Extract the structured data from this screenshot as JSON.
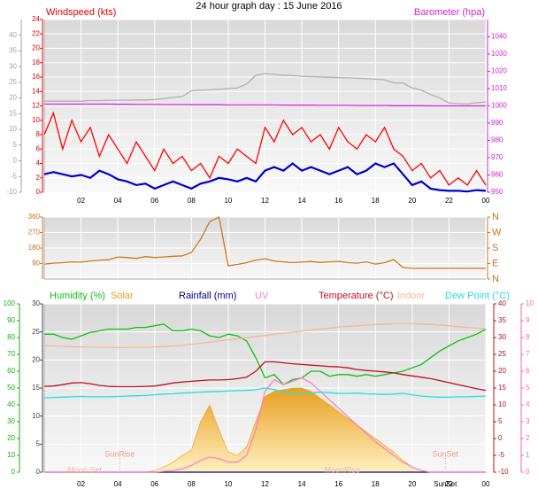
{
  "chart_data": [
    {
      "type": "line",
      "title": "24 hour graph day : 15 June 2016",
      "xlim": [
        0,
        24
      ],
      "x": [
        0,
        0.5,
        1,
        1.5,
        2,
        2.5,
        3,
        3.5,
        4,
        4.5,
        5,
        5.5,
        6,
        6.5,
        7,
        7.5,
        8,
        8.5,
        9,
        9.5,
        10,
        10.5,
        11,
        11.5,
        12,
        12.5,
        13,
        13.5,
        14,
        14.5,
        15,
        15.5,
        16,
        16.5,
        17,
        17.5,
        18,
        18.5,
        19,
        19.5,
        20,
        20.5,
        21,
        21.5,
        22,
        22.5,
        23,
        23.5,
        24
      ],
      "xticks": [
        {
          "value": 2,
          "label": "02"
        },
        {
          "value": 4,
          "label": "04"
        },
        {
          "value": 6,
          "label": "06"
        },
        {
          "value": 8,
          "label": "08"
        },
        10,
        12,
        14,
        16,
        18,
        20,
        22,
        {
          "value": 24,
          "label": "00"
        }
      ],
      "axes": [
        {
          "label": "Windspeed (kts)",
          "color": "#e00000",
          "side": "left",
          "grid": true,
          "ylim": [
            0,
            24
          ],
          "yticks": [
            0,
            2,
            4,
            6,
            8,
            10,
            12,
            14,
            16,
            18,
            20,
            22,
            24
          ]
        },
        {
          "color": "#a0a0a0",
          "side": "left",
          "ylim": [
            -10,
            45
          ],
          "yticks": [
            -10,
            -5,
            0,
            5,
            10,
            15,
            20,
            25,
            30,
            35,
            40
          ]
        },
        {
          "label": "Barometer (hpa)",
          "color": "#d020d0",
          "side": "right",
          "ylim": [
            950,
            1050
          ],
          "yticks": [
            950,
            960,
            970,
            980,
            990,
            1000,
            1010,
            1020,
            1030,
            1040
          ]
        }
      ],
      "series": [
        {
          "color": "#b0b0b0",
          "axis": 1,
          "values": [
            19,
            19,
            19,
            19,
            19,
            19.2,
            19.2,
            19.3,
            19.3,
            19.3,
            19.4,
            19.4,
            19.5,
            19.8,
            20.2,
            20.5,
            22.3,
            22.5,
            22.6,
            22.8,
            23,
            23.2,
            24.5,
            27.2,
            27.8,
            27.5,
            27.3,
            27.2,
            26.9,
            26.8,
            26.7,
            26.6,
            26.5,
            26.4,
            26.3,
            26.2,
            26,
            25.8,
            24.8,
            24.8,
            23.2,
            22.5,
            21.1,
            20,
            18.4,
            18.2,
            18.1,
            18.5,
            18.7
          ]
        },
        {
          "color": "#e020e0",
          "axis": 2,
          "values": [
            1001,
            1001,
            1001,
            1001,
            1001,
            1001,
            1001,
            1001,
            1000.9,
            1000.9,
            1000.8,
            1000.8,
            1000.8,
            1000.7,
            1000.7,
            1000.7,
            1000.6,
            1000.6,
            1000.6,
            1000.6,
            1000.5,
            1000.5,
            1000.5,
            1000.5,
            1000.5,
            1000.5,
            1000.4,
            1000.4,
            1000.4,
            1000.4,
            1000.3,
            1000.3,
            1000.3,
            1000.3,
            1000.2,
            1000.2,
            1000.2,
            1000.2,
            1000.1,
            1000.1,
            1000.1,
            1000.1,
            1000,
            1000,
            1000,
            1000,
            1000,
            1000,
            1000
          ]
        },
        {
          "color": "#ff0000",
          "axis": 0,
          "values": [
            8,
            11,
            6,
            10,
            7,
            9,
            5,
            8,
            6,
            4,
            7,
            5,
            3,
            6,
            4,
            5,
            3,
            4,
            2,
            5,
            4,
            6,
            5,
            4,
            9,
            7,
            10,
            8,
            9,
            7,
            8,
            6,
            9,
            7,
            6,
            8,
            7,
            9,
            6,
            5,
            3,
            4,
            2,
            3,
            1,
            2,
            1,
            3,
            1
          ]
        },
        {
          "color": "#0000cc",
          "axis": 0,
          "values": [
            2.5,
            2.8,
            2.5,
            2.2,
            2.4,
            2,
            3,
            2.5,
            1.8,
            1.5,
            1,
            1.2,
            0.5,
            1,
            1.5,
            1,
            0.5,
            1.2,
            1.5,
            2,
            1.8,
            1.5,
            2,
            1.5,
            3,
            3.5,
            3,
            4,
            3,
            3.5,
            3,
            2.5,
            3,
            3.5,
            2.5,
            3,
            4,
            3.5,
            4,
            2.5,
            1,
            1.5,
            0.5,
            0.3,
            0.2,
            0.2,
            0.1,
            0.3,
            0.2
          ]
        }
      ]
    },
    {
      "type": "line",
      "xlim": [
        0,
        24
      ],
      "x": [
        0,
        0.5,
        1,
        1.5,
        2,
        2.5,
        3,
        3.5,
        4,
        4.5,
        5,
        5.5,
        6,
        6.5,
        7,
        7.5,
        8,
        8.5,
        9,
        9.5,
        10,
        10.5,
        11,
        11.5,
        12,
        12.5,
        13,
        13.5,
        14,
        14.5,
        15,
        15.5,
        16,
        16.5,
        17,
        17.5,
        18,
        18.5,
        19,
        19.5,
        20,
        20.5,
        21,
        21.5,
        22,
        22.5,
        23,
        23.5,
        24
      ],
      "axes": [
        {
          "color": "#c87020",
          "side": "left",
          "grid": true,
          "ylim": [
            0,
            360
          ],
          "yticks": [
            90,
            180,
            270,
            360
          ]
        },
        {
          "color": "#c87020",
          "side": "right",
          "ylim": [
            0,
            360
          ],
          "yticks": [
            {
              "value": 360,
              "label": "N"
            },
            {
              "value": 270,
              "label": "W"
            },
            {
              "value": 180,
              "label": "S"
            },
            {
              "value": 90,
              "label": "E"
            },
            {
              "value": 0,
              "label": "N"
            }
          ]
        }
      ],
      "series": [
        {
          "color": "#d07818",
          "axis": 0,
          "values": [
            87,
            92,
            95,
            100,
            98,
            105,
            110,
            112,
            128,
            125,
            120,
            130,
            125,
            128,
            132,
            135,
            154,
            231,
            334,
            360,
            77,
            85,
            95,
            110,
            118,
            105,
            100,
            95,
            98,
            102,
            96,
            100,
            103,
            95,
            92,
            100,
            87,
            95,
            113,
            67,
            62,
            62,
            62,
            62,
            62,
            62,
            62,
            62,
            62
          ]
        }
      ]
    },
    {
      "type": "line",
      "xlim": [
        0,
        24
      ],
      "x": [
        0,
        0.5,
        1,
        1.5,
        2,
        2.5,
        3,
        3.5,
        4,
        4.5,
        5,
        5.5,
        6,
        6.5,
        7,
        7.5,
        8,
        8.5,
        9,
        9.5,
        10,
        10.5,
        11,
        11.5,
        12,
        12.5,
        13,
        13.5,
        14,
        14.5,
        15,
        15.5,
        16,
        16.5,
        17,
        17.5,
        18,
        18.5,
        19,
        19.5,
        20,
        20.5,
        21,
        21.5,
        22,
        22.5,
        23,
        23.5,
        24
      ],
      "xticks": [
        {
          "value": 2,
          "label": "02"
        },
        {
          "value": 4,
          "label": "04"
        },
        {
          "value": 6,
          "label": "06"
        },
        {
          "value": 8,
          "label": "08"
        },
        10,
        12,
        14,
        16,
        18,
        20,
        22,
        {
          "value": 24,
          "label": "00"
        }
      ],
      "axes": [
        {
          "color": "#10b010",
          "side": "left",
          "ylim": [
            0,
            100
          ],
          "yticks": [
            0,
            10,
            20,
            30,
            40,
            50,
            60,
            70,
            80,
            90,
            100
          ]
        },
        {
          "color": "#404040",
          "side": "left",
          "grid": true,
          "ylim": [
            0,
            30
          ],
          "yticks": [
            0,
            5,
            10,
            15,
            20,
            25,
            30
          ]
        },
        {
          "color": "#b01010",
          "side": "right",
          "ylim": [
            -10,
            40
          ],
          "yticks": [
            -10,
            -5,
            0,
            5,
            10,
            15,
            20,
            25,
            30,
            35,
            40
          ]
        },
        {
          "color": "#ff60b0",
          "side": "right",
          "ylim": [
            0,
            10
          ],
          "yticks": [
            0,
            1,
            2,
            3,
            4,
            5,
            6,
            7,
            8,
            9,
            10
          ]
        }
      ],
      "series": [
        {
          "name": "Humidity (%)",
          "color": "#10c010",
          "axis": 0,
          "values": [
            82,
            82,
            80,
            79,
            81,
            83,
            84,
            85,
            85,
            85,
            86,
            86,
            87,
            88,
            84,
            84,
            85,
            84,
            81,
            80,
            82,
            81,
            78,
            68,
            56,
            58,
            52,
            55,
            56,
            60,
            60,
            57,
            58,
            58,
            57,
            58,
            57,
            58,
            59,
            60,
            62,
            64,
            68,
            72,
            75,
            78,
            80,
            82,
            85
          ]
        },
        {
          "name": "Solar",
          "color": "#e8a020",
          "axis": 3,
          "fill": true,
          "values": [
            0,
            0,
            0,
            0,
            0,
            0,
            0,
            0,
            0,
            0,
            0,
            0,
            0.1,
            0.3,
            0.6,
            1,
            1.3,
            3,
            4,
            2.5,
            1.2,
            1,
            1.5,
            3,
            4.5,
            4.8,
            4.9,
            5,
            5,
            4.8,
            4.4,
            4,
            3.6,
            3.2,
            2.8,
            2.4,
            2,
            1.6,
            1.2,
            0.7,
            0.3,
            0.1,
            0,
            0,
            0,
            0,
            0,
            0,
            0
          ]
        },
        {
          "name": "Rainfall (mm)",
          "color": "#000080",
          "axis": 1,
          "values": [
            0,
            0,
            0,
            0,
            0,
            0,
            0,
            0,
            0,
            0,
            0,
            0,
            0,
            0,
            0,
            0,
            0,
            0,
            0,
            0,
            0,
            0,
            0,
            0,
            0,
            0,
            0,
            0,
            0,
            0,
            0,
            0,
            0,
            0,
            0,
            0,
            0,
            0,
            0,
            0,
            0,
            0,
            0,
            0,
            0,
            0,
            0,
            0,
            0
          ]
        },
        {
          "name": "UV",
          "color": "#ff80c0",
          "axis": 3,
          "values": [
            0,
            0,
            0,
            0,
            0,
            0,
            0,
            0,
            0,
            0,
            0,
            0,
            0,
            0.05,
            0.1,
            0.2,
            0.4,
            0.7,
            0.9,
            0.8,
            0.6,
            0.6,
            1,
            2.5,
            4.8,
            5.5,
            5.2,
            5.4,
            5.6,
            5.3,
            4.8,
            4.3,
            3.8,
            3.3,
            2.8,
            2.3,
            1.8,
            1.4,
            1,
            0.6,
            0.3,
            0.1,
            0,
            0,
            0,
            0,
            0,
            0,
            0
          ]
        },
        {
          "name": "Temperature (°C)",
          "color": "#c01020",
          "axis": 2,
          "values": [
            15.5,
            15.6,
            16,
            16.5,
            16.6,
            16.3,
            15.8,
            15.5,
            15.4,
            15.4,
            15.4,
            15.5,
            15.6,
            16,
            16.5,
            16.8,
            17,
            17.2,
            17.4,
            17.4,
            17.5,
            17.8,
            18.2,
            20,
            22.8,
            22.8,
            22.5,
            22.2,
            22,
            21.8,
            21.6,
            21.4,
            21.3,
            21,
            20.5,
            20.2,
            20,
            19.8,
            19.5,
            19,
            18.6,
            18.2,
            17.8,
            17.2,
            16.6,
            16,
            15.4,
            14.8,
            14.3
          ]
        },
        {
          "name": "Indoor",
          "color": "#f5b89a",
          "axis": 2,
          "values": [
            27.6,
            27.5,
            27.4,
            27.3,
            27.2,
            27.2,
            27.1,
            27.1,
            27,
            27,
            27.1,
            27.1,
            27.2,
            27.3,
            27.5,
            27.7,
            28,
            28.3,
            28.6,
            29,
            29.3,
            29.6,
            30,
            30.3,
            30.6,
            31,
            31.3,
            31.6,
            31.9,
            32.2,
            32.5,
            32.8,
            33.1,
            33.3,
            33.5,
            33.7,
            33.9,
            34,
            34.1,
            34.1,
            34.1,
            34,
            33.9,
            33.7,
            33.5,
            33.2,
            33,
            32.8,
            32.6
          ]
        },
        {
          "name": "Dew Point (°C)",
          "color": "#20e0e0",
          "axis": 2,
          "values": [
            12.1,
            12.2,
            12.3,
            12.4,
            12.5,
            12.4,
            12.4,
            12.4,
            12.5,
            12.6,
            12.7,
            12.8,
            13,
            13.2,
            13.3,
            13.5,
            13.6,
            13.8,
            13.9,
            14,
            14.1,
            14.2,
            14.3,
            14.5,
            15,
            14.5,
            13.8,
            13.5,
            13.3,
            13.5,
            13.8,
            13.6,
            13.4,
            13.4,
            13.5,
            13.3,
            13.2,
            13.1,
            13.2,
            13.4,
            13,
            12.6,
            12.4,
            12.3,
            12.3,
            12.4,
            12.4,
            12.5,
            12.6
          ]
        }
      ],
      "sun_events": [
        {
          "text": "SunRise",
          "x": 4.1
        },
        {
          "text": "SunSet",
          "x": 21.8
        }
      ],
      "moon_events": [
        {
          "text": "Moon Set",
          "x": 2.2
        },
        {
          "text": "MoonRise",
          "x": 16.2
        }
      ],
      "axis_events": [
        {
          "text": "SunSet",
          "x": 21.8
        }
      ]
    }
  ]
}
